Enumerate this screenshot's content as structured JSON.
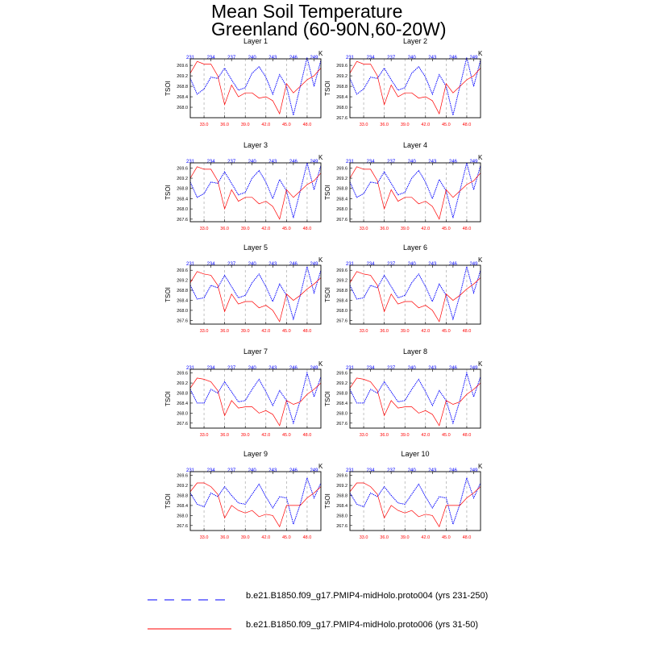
{
  "title": {
    "line1": "Mean Soil Temperature",
    "line2": "Greenland (60-90N,60-20W)"
  },
  "legend": {
    "series1": "b.e21.B1850.f09_g17.PMIP4-midHolo.proto004 (yrs 231-250)",
    "series2": "b.e21.B1850.f09_g17.PMIP4-midHolo.proto006 (yrs 31-50)"
  },
  "colors": {
    "blue": "#0000ff",
    "red": "#ff0000",
    "grid": "#9a9a9a"
  },
  "chart_data": {
    "type": "line",
    "ylabel": "TSOI",
    "top_axis_unit": "K",
    "x_top_ticks": [
      231,
      234,
      237,
      240,
      243,
      246,
      249
    ],
    "x_top_range": [
      231,
      250
    ],
    "x_bottom_ticks": [
      "33.0",
      "36.0",
      "39.0",
      "42.0",
      "45.0",
      "48.0"
    ],
    "x_bottom_range": [
      31,
      50
    ],
    "blue_x": [
      231,
      232,
      233,
      234,
      235,
      236,
      237,
      238,
      239,
      240,
      241,
      242,
      243,
      244,
      245,
      246,
      247,
      248,
      249,
      250
    ],
    "red_x": [
      31,
      32,
      33,
      34,
      35,
      36,
      37,
      38,
      39,
      40,
      41,
      42,
      43,
      44,
      45,
      46,
      47,
      48,
      49,
      50
    ],
    "panels": [
      {
        "title": "Layer 1",
        "yticks": [
          "269.6",
          "269.2",
          "268.8",
          "268.4",
          "268.0"
        ],
        "ylim": [
          267.6,
          269.85
        ],
        "blue": [
          269.1,
          268.5,
          268.7,
          269.15,
          269.1,
          269.5,
          269.05,
          268.65,
          268.75,
          269.3,
          269.55,
          269.15,
          268.5,
          269.25,
          268.8,
          267.7,
          268.8,
          269.9,
          268.8,
          269.8
        ],
        "red": [
          269.3,
          269.75,
          269.65,
          269.65,
          269.2,
          268.1,
          268.85,
          268.4,
          268.55,
          268.55,
          268.35,
          268.4,
          268.25,
          267.75,
          268.9,
          268.55,
          268.8,
          269.05,
          269.2,
          269.5
        ]
      },
      {
        "title": "Layer 2",
        "yticks": [
          "269.6",
          "269.2",
          "268.8",
          "268.4",
          "268.0",
          "267.6"
        ],
        "ylim": [
          267.6,
          269.85
        ],
        "blue": [
          269.1,
          268.5,
          268.7,
          269.15,
          269.1,
          269.5,
          269.05,
          268.65,
          268.75,
          269.3,
          269.55,
          269.15,
          268.5,
          269.25,
          268.8,
          267.7,
          268.8,
          269.9,
          268.8,
          269.8
        ],
        "red": [
          269.3,
          269.75,
          269.65,
          269.65,
          269.2,
          268.1,
          268.85,
          268.4,
          268.55,
          268.55,
          268.35,
          268.4,
          268.25,
          267.75,
          268.9,
          268.55,
          268.8,
          269.05,
          269.2,
          269.5
        ]
      },
      {
        "title": "Layer 3",
        "yticks": [
          "269.6",
          "269.2",
          "268.8",
          "268.4",
          "268.0",
          "267.6"
        ],
        "ylim": [
          267.5,
          269.8
        ],
        "blue": [
          269.05,
          268.45,
          268.6,
          269.05,
          269.0,
          269.45,
          269.0,
          268.55,
          268.65,
          269.2,
          269.5,
          269.05,
          268.4,
          269.15,
          268.7,
          267.65,
          268.7,
          269.8,
          268.75,
          269.7
        ],
        "red": [
          269.2,
          269.65,
          269.55,
          269.55,
          269.1,
          268.0,
          268.75,
          268.3,
          268.45,
          268.45,
          268.2,
          268.3,
          268.1,
          267.6,
          268.75,
          268.45,
          268.7,
          268.95,
          269.1,
          269.4
        ]
      },
      {
        "title": "Layer 4",
        "yticks": [
          "269.6",
          "269.2",
          "268.8",
          "268.4",
          "268.0",
          "267.6"
        ],
        "ylim": [
          267.5,
          269.8
        ],
        "blue": [
          269.05,
          268.45,
          268.6,
          269.05,
          269.0,
          269.45,
          269.0,
          268.55,
          268.65,
          269.2,
          269.5,
          269.05,
          268.4,
          269.15,
          268.7,
          267.65,
          268.7,
          269.8,
          268.75,
          269.7
        ],
        "red": [
          269.2,
          269.65,
          269.55,
          269.55,
          269.1,
          268.0,
          268.75,
          268.3,
          268.45,
          268.45,
          268.2,
          268.3,
          268.1,
          267.6,
          268.75,
          268.45,
          268.7,
          268.95,
          269.1,
          269.4
        ]
      },
      {
        "title": "Layer 5",
        "yticks": [
          "269.6",
          "269.2",
          "268.8",
          "268.4",
          "268.0",
          "267.6"
        ],
        "ylim": [
          267.45,
          269.8
        ],
        "blue": [
          269.0,
          268.45,
          268.5,
          269.0,
          268.9,
          269.4,
          268.95,
          268.5,
          268.6,
          269.1,
          269.45,
          268.95,
          268.35,
          269.05,
          268.6,
          267.65,
          268.6,
          269.75,
          268.7,
          269.6
        ],
        "red": [
          269.1,
          269.55,
          269.45,
          269.4,
          269.0,
          267.95,
          268.65,
          268.25,
          268.35,
          268.35,
          268.1,
          268.2,
          268.0,
          267.55,
          268.65,
          268.4,
          268.6,
          268.85,
          269.05,
          269.3
        ]
      },
      {
        "title": "Layer 6",
        "yticks": [
          "269.6",
          "269.2",
          "268.8",
          "268.4",
          "268.0",
          "267.6"
        ],
        "ylim": [
          267.45,
          269.8
        ],
        "blue": [
          269.0,
          268.45,
          268.5,
          269.0,
          268.9,
          269.4,
          268.95,
          268.5,
          268.6,
          269.1,
          269.45,
          268.95,
          268.35,
          269.05,
          268.6,
          267.65,
          268.6,
          269.75,
          268.7,
          269.6
        ],
        "red": [
          269.1,
          269.55,
          269.45,
          269.4,
          269.0,
          267.95,
          268.65,
          268.25,
          268.35,
          268.35,
          268.1,
          268.2,
          268.0,
          267.55,
          268.65,
          268.4,
          268.6,
          268.85,
          269.05,
          269.3
        ]
      },
      {
        "title": "Layer 7",
        "yticks": [
          "269.6",
          "269.2",
          "268.8",
          "268.4",
          "268.0",
          "267.6"
        ],
        "ylim": [
          267.4,
          269.75
        ],
        "blue": [
          268.95,
          268.4,
          268.4,
          268.95,
          268.8,
          269.25,
          268.85,
          268.45,
          268.5,
          268.95,
          269.35,
          268.85,
          268.3,
          268.9,
          268.5,
          267.6,
          268.5,
          269.6,
          268.65,
          269.45
        ],
        "red": [
          269.0,
          269.4,
          269.35,
          269.25,
          268.9,
          267.9,
          268.5,
          268.2,
          268.25,
          268.25,
          268.0,
          268.1,
          267.95,
          267.5,
          268.5,
          268.35,
          268.45,
          268.75,
          268.95,
          269.2
        ]
      },
      {
        "title": "Layer 8",
        "yticks": [
          "269.6",
          "269.2",
          "268.8",
          "268.4",
          "268.0",
          "267.6"
        ],
        "ylim": [
          267.4,
          269.75
        ],
        "blue": [
          268.95,
          268.4,
          268.4,
          268.95,
          268.8,
          269.25,
          268.85,
          268.45,
          268.5,
          268.95,
          269.35,
          268.85,
          268.3,
          268.9,
          268.5,
          267.6,
          268.5,
          269.6,
          268.65,
          269.45
        ],
        "red": [
          269.0,
          269.4,
          269.35,
          269.25,
          268.9,
          267.9,
          268.5,
          268.2,
          268.25,
          268.25,
          268.0,
          268.1,
          267.95,
          267.5,
          268.5,
          268.35,
          268.45,
          268.75,
          268.95,
          269.2
        ]
      },
      {
        "title": "Layer 9",
        "yticks": [
          "269.6",
          "269.2",
          "268.8",
          "268.4",
          "268.0",
          "267.6"
        ],
        "ylim": [
          267.4,
          269.75
        ],
        "blue": [
          268.9,
          268.45,
          268.35,
          268.9,
          268.75,
          269.15,
          268.8,
          268.5,
          268.45,
          268.85,
          269.25,
          268.75,
          268.3,
          268.75,
          268.7,
          267.65,
          268.45,
          269.5,
          268.7,
          269.3
        ],
        "red": [
          268.95,
          269.3,
          269.3,
          269.15,
          268.85,
          267.9,
          268.4,
          268.2,
          268.1,
          268.2,
          267.95,
          268.05,
          268.0,
          267.55,
          268.4,
          268.4,
          268.4,
          268.7,
          268.9,
          269.15
        ]
      },
      {
        "title": "Layer 10",
        "yticks": [
          "269.6",
          "269.2",
          "268.8",
          "268.4",
          "268.0",
          "267.6"
        ],
        "ylim": [
          267.4,
          269.75
        ],
        "blue": [
          268.9,
          268.45,
          268.35,
          268.9,
          268.75,
          269.15,
          268.8,
          268.5,
          268.45,
          268.85,
          269.25,
          268.75,
          268.3,
          268.75,
          268.7,
          267.65,
          268.45,
          269.5,
          268.7,
          269.3
        ],
        "red": [
          268.95,
          269.3,
          269.3,
          269.15,
          268.85,
          267.9,
          268.4,
          268.2,
          268.1,
          268.2,
          267.95,
          268.05,
          268.0,
          267.55,
          268.4,
          268.4,
          268.4,
          268.7,
          268.9,
          269.15
        ]
      }
    ]
  }
}
